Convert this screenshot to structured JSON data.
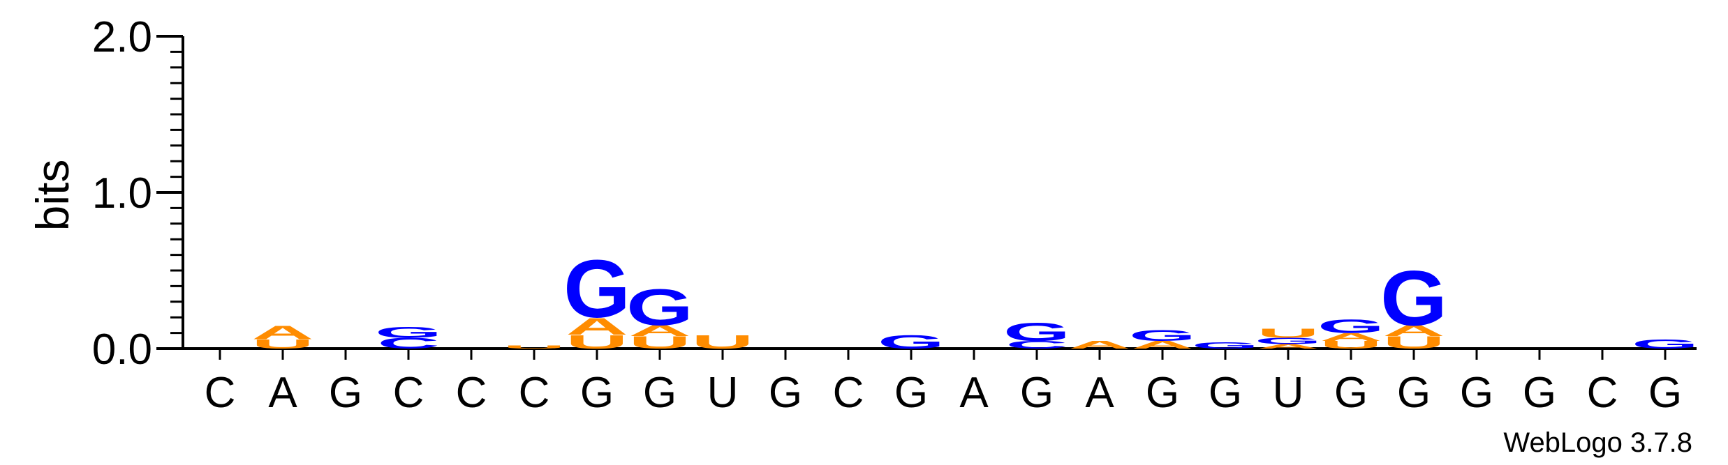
{
  "chart_data": {
    "type": "sequence-logo",
    "ylabel": "bits",
    "ylim": [
      0,
      2.0
    ],
    "yticks": [
      "0.0",
      "1.0",
      "2.0"
    ],
    "x_tick_labels": [
      "C",
      "A",
      "G",
      "C",
      "C",
      "C",
      "G",
      "G",
      "U",
      "G",
      "C",
      "G",
      "A",
      "G",
      "A",
      "G",
      "G",
      "U",
      "G",
      "G",
      "G",
      "G",
      "C",
      "G"
    ],
    "colors": {
      "G": "#0000ff",
      "A": "#ff8c00",
      "U": "#ff8c00",
      "C": "#0000ff"
    },
    "positions": [
      {
        "stack": []
      },
      {
        "stack": [
          {
            "letter": "U",
            "bits": 0.06
          },
          {
            "letter": "A",
            "bits": 0.09
          }
        ]
      },
      {
        "stack": []
      },
      {
        "stack": [
          {
            "letter": "C",
            "bits": 0.07
          },
          {
            "letter": "G",
            "bits": 0.07
          }
        ]
      },
      {
        "stack": []
      },
      {
        "stack": [
          {
            "letter": "U",
            "bits": 0.02
          }
        ]
      },
      {
        "stack": [
          {
            "letter": "U",
            "bits": 0.09
          },
          {
            "letter": "A",
            "bits": 0.11
          },
          {
            "letter": "G",
            "bits": 0.38
          }
        ]
      },
      {
        "stack": [
          {
            "letter": "U",
            "bits": 0.08
          },
          {
            "letter": "A",
            "bits": 0.07
          },
          {
            "letter": "G",
            "bits": 0.24
          }
        ]
      },
      {
        "stack": [
          {
            "letter": "U",
            "bits": 0.09
          }
        ]
      },
      {
        "stack": []
      },
      {
        "stack": []
      },
      {
        "stack": [
          {
            "letter": "G",
            "bits": 0.09
          }
        ]
      },
      {
        "stack": []
      },
      {
        "stack": [
          {
            "letter": "C",
            "bits": 0.05
          },
          {
            "letter": "G",
            "bits": 0.12
          }
        ]
      },
      {
        "stack": [
          {
            "letter": "A",
            "bits": 0.05
          }
        ]
      },
      {
        "stack": [
          {
            "letter": "A",
            "bits": 0.05
          },
          {
            "letter": "G",
            "bits": 0.07
          }
        ]
      },
      {
        "stack": [
          {
            "letter": "G",
            "bits": 0.04
          }
        ]
      },
      {
        "stack": [
          {
            "letter": "A",
            "bits": 0.03
          },
          {
            "letter": "G",
            "bits": 0.04
          },
          {
            "letter": "U",
            "bits": 0.06
          }
        ]
      },
      {
        "stack": [
          {
            "letter": "U",
            "bits": 0.05
          },
          {
            "letter": "A",
            "bits": 0.05
          },
          {
            "letter": "G",
            "bits": 0.09
          }
        ]
      },
      {
        "stack": [
          {
            "letter": "U",
            "bits": 0.08
          },
          {
            "letter": "A",
            "bits": 0.07
          },
          {
            "letter": "G",
            "bits": 0.36
          }
        ]
      },
      {
        "stack": []
      },
      {
        "stack": []
      },
      {
        "stack": []
      },
      {
        "stack": [
          {
            "letter": "G",
            "bits": 0.06
          }
        ]
      }
    ]
  },
  "footer": {
    "credit": "WebLogo 3.7.8"
  }
}
